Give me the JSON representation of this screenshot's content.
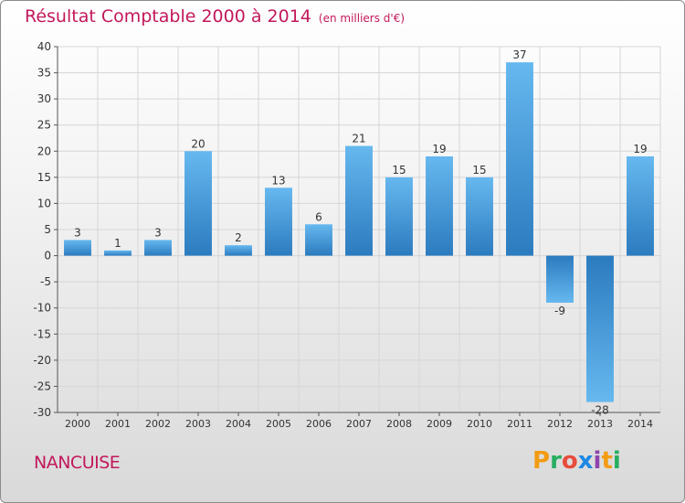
{
  "title": "Résultat Comptable 2000 à 2014",
  "subtitle": "(en milliers d'€)",
  "town": "NANCUISE",
  "logo": {
    "text": "Proxiti",
    "letters": [
      "P",
      "r",
      "o",
      "x",
      "i",
      "t",
      "i"
    ],
    "colors": [
      "#f39c12",
      "#27ae60",
      "#e74c3c",
      "#1e88e5",
      "#8e44ad",
      "#f39c12",
      "#27ae60"
    ]
  },
  "chart_data": {
    "type": "bar",
    "title": "Résultat Comptable 2000 à 2014",
    "xlabel": "",
    "ylabel": "",
    "ylim": [
      -30,
      40
    ],
    "ytick_step": 5,
    "categories": [
      "2000",
      "2001",
      "2002",
      "2003",
      "2004",
      "2005",
      "2006",
      "2007",
      "2008",
      "2009",
      "2010",
      "2011",
      "2012",
      "2013",
      "2014"
    ],
    "values": [
      3,
      1,
      3,
      20,
      2,
      13,
      6,
      21,
      15,
      19,
      15,
      37,
      -9,
      -28,
      19
    ],
    "grid": true,
    "bar_color_light": "#63b4ec",
    "bar_color_dark": "#2a7cc0"
  }
}
